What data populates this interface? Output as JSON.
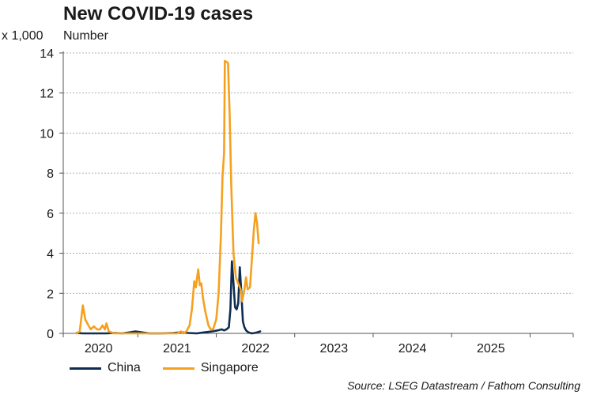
{
  "chart_data": {
    "type": "line",
    "title": "New COVID-19 cases",
    "y_unit_label": "x 1,000",
    "ylabel": "Number",
    "xlabel": "",
    "ylim": [
      0,
      14
    ],
    "yticks": [
      0,
      2,
      4,
      6,
      8,
      10,
      12,
      14
    ],
    "xlim": [
      2019.55,
      2026.05
    ],
    "x_tick_labels": [
      {
        "label": "2020",
        "pos": 2020.0
      },
      {
        "label": "2021",
        "pos": 2021.0
      },
      {
        "label": "2022",
        "pos": 2022.0
      },
      {
        "label": "2023",
        "pos": 2023.0
      },
      {
        "label": "2024",
        "pos": 2024.0
      },
      {
        "label": "2025",
        "pos": 2025.0
      }
    ],
    "x_minor_ticks": [
      2019.55,
      2020.5,
      2021.5,
      2022.5,
      2023.5,
      2024.5,
      2025.5,
      2026.05
    ],
    "grid": true,
    "legend_position": "bottom-left",
    "series": [
      {
        "name": "China",
        "color": "#0f2d52",
        "points": [
          [
            2019.72,
            0.02
          ],
          [
            2019.8,
            0.0
          ],
          [
            2019.9,
            0.0
          ],
          [
            2020.0,
            0.0
          ],
          [
            2020.1,
            0.0
          ],
          [
            2020.2,
            0.02
          ],
          [
            2020.3,
            0.0
          ],
          [
            2020.4,
            0.05
          ],
          [
            2020.47,
            0.1
          ],
          [
            2020.55,
            0.05
          ],
          [
            2020.65,
            0.0
          ],
          [
            2020.8,
            0.0
          ],
          [
            2020.95,
            0.02
          ],
          [
            2021.05,
            0.05
          ],
          [
            2021.15,
            0.02
          ],
          [
            2021.25,
            0.0
          ],
          [
            2021.35,
            0.05
          ],
          [
            2021.45,
            0.1
          ],
          [
            2021.52,
            0.15
          ],
          [
            2021.57,
            0.2
          ],
          [
            2021.6,
            0.15
          ],
          [
            2021.63,
            0.2
          ],
          [
            2021.66,
            0.3
          ],
          [
            2021.68,
            1.2
          ],
          [
            2021.7,
            3.6
          ],
          [
            2021.72,
            2.5
          ],
          [
            2021.74,
            1.3
          ],
          [
            2021.76,
            1.2
          ],
          [
            2021.78,
            1.5
          ],
          [
            2021.8,
            3.3
          ],
          [
            2021.82,
            2.0
          ],
          [
            2021.84,
            0.6
          ],
          [
            2021.86,
            0.3
          ],
          [
            2021.88,
            0.15
          ],
          [
            2021.91,
            0.05
          ],
          [
            2021.95,
            0.0
          ],
          [
            2021.99,
            0.02
          ],
          [
            2022.02,
            0.05
          ],
          [
            2022.06,
            0.1
          ]
        ]
      },
      {
        "name": "Singapore",
        "color": "#f5a11e",
        "points": [
          [
            2019.72,
            0.0
          ],
          [
            2019.76,
            0.1
          ],
          [
            2019.8,
            1.4
          ],
          [
            2019.83,
            0.7
          ],
          [
            2019.87,
            0.4
          ],
          [
            2019.9,
            0.2
          ],
          [
            2019.94,
            0.35
          ],
          [
            2019.98,
            0.2
          ],
          [
            2020.02,
            0.2
          ],
          [
            2020.05,
            0.4
          ],
          [
            2020.08,
            0.2
          ],
          [
            2020.1,
            0.5
          ],
          [
            2020.13,
            0.1
          ],
          [
            2020.2,
            0.0
          ],
          [
            2020.4,
            0.0
          ],
          [
            2020.6,
            0.0
          ],
          [
            2020.8,
            0.0
          ],
          [
            2021.0,
            0.0
          ],
          [
            2021.05,
            0.1
          ],
          [
            2021.08,
            0.0
          ],
          [
            2021.12,
            0.1
          ],
          [
            2021.16,
            0.4
          ],
          [
            2021.19,
            1.2
          ],
          [
            2021.22,
            2.6
          ],
          [
            2021.24,
            2.3
          ],
          [
            2021.27,
            3.2
          ],
          [
            2021.29,
            2.4
          ],
          [
            2021.31,
            2.5
          ],
          [
            2021.33,
            1.8
          ],
          [
            2021.36,
            1.1
          ],
          [
            2021.4,
            0.4
          ],
          [
            2021.43,
            0.2
          ],
          [
            2021.46,
            0.2
          ],
          [
            2021.5,
            0.7
          ],
          [
            2021.53,
            2.0
          ],
          [
            2021.56,
            5.0
          ],
          [
            2021.58,
            7.8
          ],
          [
            2021.6,
            9.0
          ],
          [
            2021.61,
            13.6
          ],
          [
            2021.65,
            13.5
          ],
          [
            2021.67,
            11.0
          ],
          [
            2021.69,
            7.5
          ],
          [
            2021.72,
            4.0
          ],
          [
            2021.75,
            2.8
          ],
          [
            2021.78,
            2.5
          ],
          [
            2021.81,
            2.2
          ],
          [
            2021.83,
            1.6
          ],
          [
            2021.86,
            2.2
          ],
          [
            2021.88,
            2.8
          ],
          [
            2021.9,
            2.2
          ],
          [
            2021.93,
            2.3
          ],
          [
            2021.96,
            4.0
          ],
          [
            2021.98,
            5.2
          ],
          [
            2022.0,
            6.0
          ],
          [
            2022.02,
            5.5
          ],
          [
            2022.04,
            4.5
          ]
        ]
      }
    ]
  },
  "source_text": "Source: LSEG Datastream / Fathom Consulting"
}
